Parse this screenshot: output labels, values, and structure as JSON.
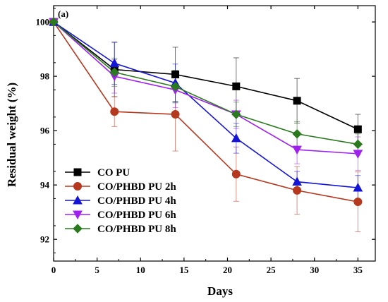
{
  "chart_data": {
    "type": "line",
    "panel_label": "(a)",
    "xlabel": "Days",
    "ylabel": "Residual weight (%)",
    "xlim": [
      0,
      37
    ],
    "ylim": [
      91.2,
      100.6
    ],
    "xticks": [
      0,
      5,
      10,
      15,
      20,
      25,
      30,
      35
    ],
    "yticks": [
      92,
      94,
      96,
      98,
      100
    ],
    "legend_position": "bottom-left",
    "x": [
      0,
      7,
      14,
      21,
      28,
      35
    ],
    "series": [
      {
        "name": "CO PU",
        "color": "#000000",
        "marker": "square",
        "values": [
          100,
          98.25,
          98.07,
          97.63,
          97.1,
          96.05
        ],
        "errors": [
          0,
          1.0,
          1.0,
          1.05,
          0.82,
          0.55
        ]
      },
      {
        "name": "CO/PHBD PU 2h",
        "color": "#b5381f",
        "marker": "circle",
        "values": [
          100,
          96.7,
          96.6,
          94.4,
          93.8,
          93.38
        ],
        "errors": [
          0,
          0.55,
          1.35,
          1.0,
          0.88,
          1.1
        ]
      },
      {
        "name": "CO/PHBD PU 4h",
        "color": "#1414d8",
        "marker": "triangle-up",
        "values": [
          100,
          98.48,
          97.75,
          95.72,
          94.12,
          93.9
        ],
        "errors": [
          0,
          0.78,
          0.7,
          0.55,
          0.38,
          0.45
        ]
      },
      {
        "name": "CO/PHBD PU 6h",
        "color": "#a020f0",
        "marker": "triangle-down",
        "values": [
          100,
          98.0,
          97.5,
          96.6,
          95.3,
          95.15
        ],
        "errors": [
          0,
          0.62,
          0.65,
          0.52,
          0.52,
          0.62
        ]
      },
      {
        "name": "CO/PHBD PU 8h",
        "color": "#2b7a1e",
        "marker": "diamond",
        "values": [
          100,
          98.15,
          97.62,
          96.6,
          95.88,
          95.5
        ],
        "errors": [
          0,
          0.52,
          0.6,
          0.45,
          0.45,
          0.38
        ]
      }
    ]
  }
}
